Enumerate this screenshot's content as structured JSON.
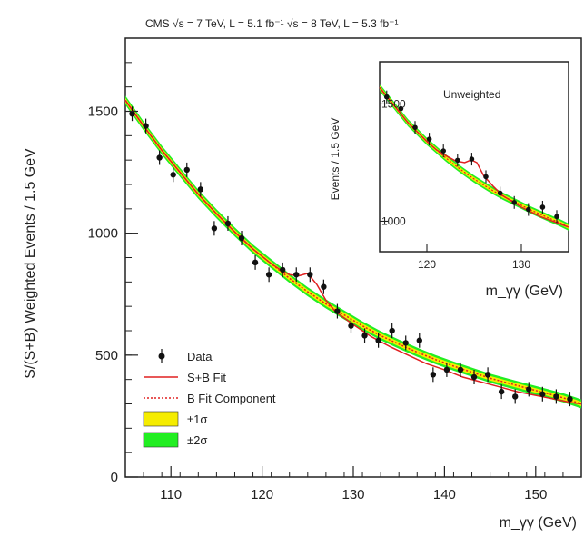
{
  "chart_data": {
    "type": "scatter",
    "header": "CMS  √s = 7 TeV, L = 5.1 fb⁻¹ √s = 8 TeV, L = 5.3 fb⁻¹",
    "xlabel": "m_γγ (GeV)",
    "ylabel": "S/(S+B) Weighted Events / 1.5 GeV",
    "xlim": [
      105,
      155
    ],
    "ylim": [
      0,
      1800
    ],
    "xticks": [
      "110",
      "120",
      "130",
      "140",
      "150"
    ],
    "yticks": [
      "0",
      "500",
      "1000",
      "1500"
    ],
    "legend_position": "bottom-left",
    "legend": [
      {
        "label": "Data",
        "kind": "marker"
      },
      {
        "label": "S+B Fit",
        "kind": "line",
        "color": "#e02020"
      },
      {
        "label": "B Fit Component",
        "kind": "dotted",
        "color": "#e02020"
      },
      {
        "label": "±1σ",
        "kind": "band",
        "color": "#f5ec00"
      },
      {
        "label": "±2σ",
        "kind": "band",
        "color": "#22ee22"
      }
    ],
    "series": [
      {
        "name": "Data",
        "x": [
          105.75,
          107.25,
          108.75,
          110.25,
          111.75,
          113.25,
          114.75,
          116.25,
          117.75,
          119.25,
          120.75,
          122.25,
          123.75,
          125.25,
          126.75,
          128.25,
          129.75,
          131.25,
          132.75,
          134.25,
          135.75,
          137.25,
          138.75,
          140.25,
          141.75,
          143.25,
          144.75,
          146.25,
          147.75,
          149.25,
          150.75,
          152.25,
          153.75
        ],
        "y": [
          1490,
          1440,
          1310,
          1240,
          1260,
          1180,
          1020,
          1040,
          980,
          880,
          830,
          850,
          830,
          830,
          780,
          680,
          620,
          580,
          560,
          600,
          550,
          560,
          420,
          440,
          440,
          410,
          420,
          350,
          330,
          360,
          340,
          330,
          320
        ]
      },
      {
        "name": "S+B Fit",
        "x": [
          105,
          107,
          109,
          111,
          113,
          115,
          117,
          119,
          121,
          122,
          123,
          124,
          125,
          126,
          127,
          128,
          130,
          132,
          134,
          136,
          138,
          140,
          142,
          144,
          146,
          148,
          150,
          152,
          154,
          155
        ],
        "y": [
          1545,
          1440,
          1340,
          1250,
          1160,
          1080,
          1005,
          935,
          875,
          850,
          830,
          825,
          835,
          790,
          725,
          680,
          625,
          575,
          535,
          500,
          465,
          440,
          410,
          390,
          370,
          350,
          335,
          320,
          305,
          300
        ]
      },
      {
        "name": "B Fit Component",
        "x": [
          105,
          107,
          109,
          111,
          113,
          115,
          117,
          119,
          121,
          123,
          125,
          127,
          129,
          131,
          133,
          135,
          137,
          139,
          141,
          143,
          145,
          147,
          149,
          151,
          153,
          155
        ],
        "y": [
          1545,
          1440,
          1340,
          1250,
          1160,
          1080,
          1005,
          935,
          875,
          815,
          760,
          710,
          665,
          620,
          580,
          545,
          512,
          482,
          455,
          430,
          405,
          385,
          365,
          345,
          325,
          300
        ]
      }
    ],
    "inset": {
      "label": "Unweighted",
      "xlabel": "m_γγ (GeV)",
      "ylabel": "Events / 1.5 GeV",
      "xlim": [
        115,
        135
      ],
      "ylim": [
        870,
        1680
      ],
      "xticks": [
        "120",
        "130"
      ],
      "yticks": [
        "1000",
        "1500"
      ],
      "data": {
        "x": [
          115.75,
          117.25,
          118.75,
          120.25,
          121.75,
          123.25,
          124.75,
          126.25,
          127.75,
          129.25,
          130.75,
          132.25,
          133.75
        ],
        "y": [
          1530,
          1480,
          1400,
          1350,
          1300,
          1260,
          1265,
          1190,
          1120,
          1080,
          1050,
          1060,
          1020
        ]
      },
      "fit": {
        "x": [
          115,
          116,
          117,
          118,
          119,
          120,
          121,
          122,
          123,
          124,
          124.7,
          125.3,
          126,
          127,
          128,
          129,
          130,
          131,
          132,
          133,
          134,
          135
        ],
        "y": [
          1570,
          1520,
          1470,
          1420,
          1380,
          1340,
          1305,
          1280,
          1258,
          1250,
          1262,
          1250,
          1195,
          1150,
          1110,
          1085,
          1060,
          1040,
          1020,
          1005,
          990,
          975
        ]
      },
      "bkg": {
        "x": [
          115,
          116,
          117,
          118,
          119,
          120,
          121,
          122,
          123,
          124,
          125,
          126,
          127,
          128,
          129,
          130,
          131,
          132,
          133,
          134,
          135
        ],
        "y": [
          1570,
          1520,
          1470,
          1420,
          1380,
          1340,
          1305,
          1270,
          1238,
          1208,
          1180,
          1155,
          1130,
          1108,
          1088,
          1068,
          1048,
          1030,
          1012,
          995,
          975
        ]
      }
    }
  }
}
